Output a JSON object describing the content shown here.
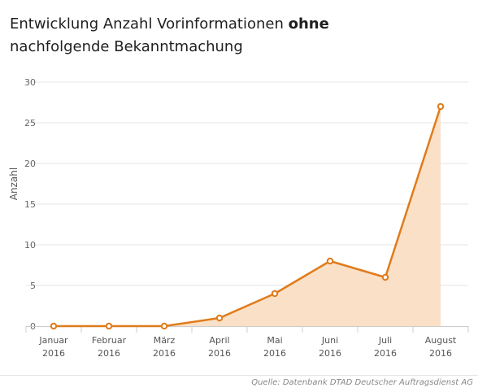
{
  "title": {
    "part1": "Entwicklung Anzahl Vorinformationen ",
    "bold": "ohne",
    "line2": "nachfolgende Bekanntmachung"
  },
  "source": "Quelle: Datenbank DTAD Deutscher Auftragsdienst AG",
  "colors": {
    "line": "#e07b1a",
    "area": "#fbe0c8",
    "grid": "#e5e5e5",
    "axis": "#cccccc"
  },
  "chart_data": {
    "type": "area",
    "title": "Entwicklung Anzahl Vorinformationen ohne nachfolgende Bekanntmachung",
    "xlabel": "",
    "ylabel": "Anzahl",
    "ylim": [
      0,
      30
    ],
    "yticks": [
      0,
      5,
      10,
      15,
      20,
      25,
      30
    ],
    "grid": true,
    "legend": "none",
    "categories": [
      [
        "Januar",
        "2016"
      ],
      [
        "Februar",
        "2016"
      ],
      [
        "März",
        "2016"
      ],
      [
        "April",
        "2016"
      ],
      [
        "Mai",
        "2016"
      ],
      [
        "Juni",
        "2016"
      ],
      [
        "Juli",
        "2016"
      ],
      [
        "August",
        "2016"
      ]
    ],
    "series": [
      {
        "values": [
          0,
          0,
          0,
          1,
          4,
          8,
          6,
          27
        ]
      }
    ]
  }
}
